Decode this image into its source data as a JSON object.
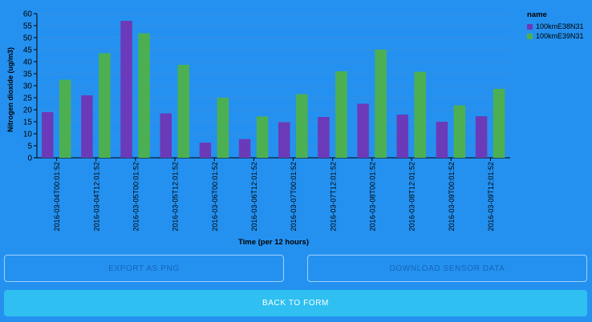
{
  "chart_data": {
    "type": "bar",
    "categories": [
      "2016-03-04T00:01:52",
      "2016-03-04T12:01:52",
      "2016-03-05T00:01:52",
      "2016-03-05T12:01:52",
      "2016-03-06T00:01:52",
      "2016-03-06T12:01:52",
      "2016-03-07T00:01:52",
      "2016-03-07T12:01:52",
      "2016-03-08T00:01:52",
      "2016-03-08T12:01:52",
      "2016-03-09T00:01:52",
      "2016-03-09T12:01:52"
    ],
    "series": [
      {
        "name": "100kmE38N31",
        "color": "#6b3ab8",
        "values": [
          19,
          26,
          57,
          18.5,
          6.3,
          7.8,
          14.8,
          17,
          22.5,
          18,
          15,
          17.3
        ]
      },
      {
        "name": "100kmE39N31",
        "color": "#4cb052",
        "values": [
          32.5,
          43.5,
          51.8,
          38.7,
          25,
          17.2,
          26.5,
          36,
          45,
          35.8,
          21.8,
          28.7
        ]
      }
    ],
    "xlabel": "Time (per 12 hours)",
    "ylabel": "Nitrogen dioxide (ug/m3)",
    "ylim": [
      0,
      60
    ],
    "yticks": [
      0,
      5,
      10,
      15,
      20,
      25,
      30,
      35,
      40,
      45,
      50,
      55,
      60
    ],
    "grid": true,
    "legend": {
      "title": "name",
      "placement": "top-right"
    }
  },
  "buttons": {
    "export_label": "EXPORT AS PNG",
    "download_label": "DOWNLOAD SENSOR DATA",
    "back_label": "BACK TO FORM"
  },
  "colors": {
    "background": "#2491f0",
    "gridline": "#3a8fe0",
    "back_button": "#2fc0f1"
  }
}
